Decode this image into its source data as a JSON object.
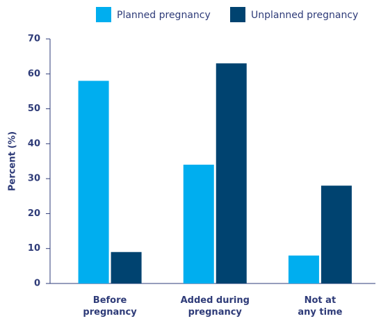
{
  "chart_data": {
    "type": "bar",
    "y_label": "Percent (%)",
    "categories": [
      "Before\npregnancy",
      "Added during\npregnancy",
      "Not at\nany time"
    ],
    "series": [
      {
        "name": "Planned pregnancy",
        "color": "#00aeef",
        "values": [
          58,
          34,
          8
        ]
      },
      {
        "name": "Unplanned pregnancy",
        "color": "#004370",
        "values": [
          9,
          63,
          28
        ]
      }
    ],
    "ylim": [
      0,
      70
    ],
    "yticks": [
      0,
      10,
      20,
      30,
      40,
      50,
      60,
      70
    ],
    "legend": "top"
  }
}
